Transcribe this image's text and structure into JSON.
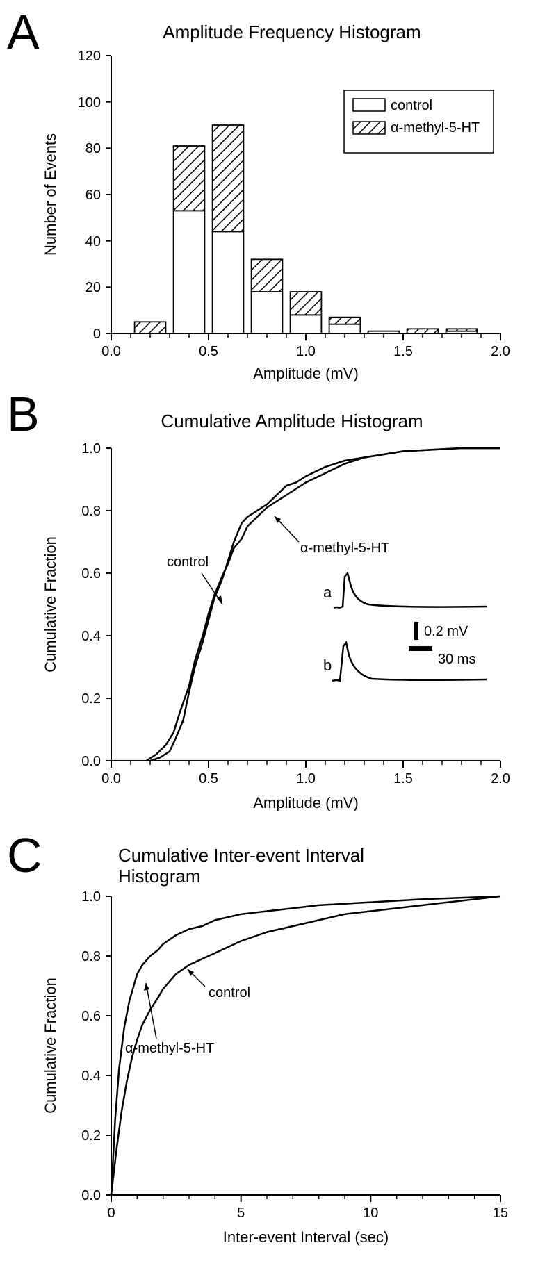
{
  "panelA": {
    "label": "A",
    "title": "Amplitude Frequency Histogram",
    "type": "histogram",
    "xlabel": "Amplitude (mV)",
    "ylabel": "Number of Events",
    "xlim": [
      0.0,
      2.0
    ],
    "ylim": [
      0,
      120
    ],
    "xtick_step": 0.5,
    "ytick_step": 20,
    "xticks": [
      0.0,
      0.5,
      1.0,
      1.5,
      2.0
    ],
    "yticks": [
      0,
      20,
      40,
      60,
      80,
      100,
      120
    ],
    "bin_centers": [
      0.2,
      0.4,
      0.6,
      0.8,
      1.0,
      1.2,
      1.4,
      1.6,
      1.8
    ],
    "control_values": [
      0,
      53,
      44,
      18,
      8,
      4,
      1,
      0,
      1
    ],
    "treat_values": [
      5,
      28,
      46,
      14,
      10,
      3,
      0,
      2,
      1
    ],
    "bar_width": 0.16,
    "control_fill": "#ffffff",
    "treat_fill": "hatched",
    "stroke": "#000000",
    "legend": {
      "items": [
        {
          "label": "control",
          "style": "open"
        },
        {
          "label": "α-methyl-5-HT",
          "style": "hatched"
        }
      ],
      "border": true
    },
    "title_fontsize": 22,
    "label_fontsize": 20,
    "tick_fontsize": 18
  },
  "panelB": {
    "label": "B",
    "title": "Cumulative Amplitude Histogram",
    "type": "cumulative_line",
    "xlabel": "Amplitude (mV)",
    "ylabel": "Cumulative Fraction",
    "xlim": [
      0.0,
      2.0
    ],
    "ylim": [
      0.0,
      1.0
    ],
    "xticks": [
      0.0,
      0.5,
      1.0,
      1.5,
      2.0
    ],
    "yticks": [
      0.0,
      0.2,
      0.4,
      0.6,
      0.8,
      1.0
    ],
    "series": {
      "control": {
        "x": [
          0.2,
          0.25,
          0.3,
          0.33,
          0.37,
          0.4,
          0.43,
          0.47,
          0.5,
          0.53,
          0.57,
          0.6,
          0.63,
          0.67,
          0.7,
          0.75,
          0.8,
          0.85,
          0.9,
          0.95,
          1.0,
          1.1,
          1.2,
          1.3,
          1.5,
          1.8,
          2.0
        ],
        "y": [
          0.0,
          0.01,
          0.03,
          0.07,
          0.13,
          0.22,
          0.3,
          0.38,
          0.45,
          0.52,
          0.58,
          0.64,
          0.7,
          0.76,
          0.78,
          0.8,
          0.82,
          0.85,
          0.88,
          0.89,
          0.91,
          0.94,
          0.96,
          0.97,
          0.99,
          1.0,
          1.0
        ]
      },
      "treat": {
        "x": [
          0.18,
          0.23,
          0.28,
          0.32,
          0.35,
          0.4,
          0.43,
          0.47,
          0.5,
          0.53,
          0.57,
          0.6,
          0.63,
          0.67,
          0.7,
          0.75,
          0.8,
          0.85,
          0.9,
          0.95,
          1.0,
          1.1,
          1.2,
          1.3,
          1.5,
          1.8,
          2.0
        ],
        "y": [
          0.0,
          0.02,
          0.05,
          0.09,
          0.15,
          0.24,
          0.32,
          0.4,
          0.47,
          0.53,
          0.59,
          0.63,
          0.68,
          0.71,
          0.75,
          0.78,
          0.81,
          0.83,
          0.85,
          0.87,
          0.89,
          0.92,
          0.95,
          0.97,
          0.99,
          1.0,
          1.0
        ]
      }
    },
    "annotations": {
      "control_label": "control",
      "treat_label": "α-methyl-5-HT"
    },
    "inset": {
      "scale_mv": "0.2 mV",
      "scale_ms": "30 ms",
      "trace_labels": [
        "a",
        "b"
      ]
    },
    "line_color": "#000000",
    "line_width": 2.5,
    "title_fontsize": 22,
    "label_fontsize": 20,
    "tick_fontsize": 18
  },
  "panelC": {
    "label": "C",
    "title_line1": "Cumulative Inter-event Interval",
    "title_line2": "Histogram",
    "type": "cumulative_line",
    "xlabel": "Inter-event Interval (sec)",
    "ylabel": "Cumulative Fraction",
    "xlim": [
      0,
      15
    ],
    "ylim": [
      0.0,
      1.0
    ],
    "xticks": [
      0,
      5,
      10,
      15
    ],
    "yticks": [
      0.0,
      0.2,
      0.4,
      0.6,
      0.8,
      1.0
    ],
    "series": {
      "control": {
        "x": [
          0,
          0.2,
          0.4,
          0.6,
          0.8,
          1.0,
          1.2,
          1.5,
          1.8,
          2.0,
          2.5,
          3.0,
          3.5,
          4.0,
          4.5,
          5.0,
          6.0,
          7.0,
          8.0,
          9.0,
          10.0,
          12.0,
          15.0
        ],
        "y": [
          0.0,
          0.15,
          0.28,
          0.38,
          0.46,
          0.52,
          0.57,
          0.62,
          0.66,
          0.69,
          0.74,
          0.77,
          0.79,
          0.81,
          0.83,
          0.85,
          0.88,
          0.9,
          0.92,
          0.94,
          0.95,
          0.97,
          1.0
        ]
      },
      "treat": {
        "x": [
          0,
          0.15,
          0.3,
          0.5,
          0.7,
          0.9,
          1.0,
          1.2,
          1.5,
          1.8,
          2.0,
          2.5,
          3.0,
          3.5,
          4.0,
          5.0,
          6.0,
          7.0,
          8.0,
          10.0,
          12.0,
          15.0
        ],
        "y": [
          0.0,
          0.25,
          0.42,
          0.56,
          0.65,
          0.71,
          0.74,
          0.77,
          0.8,
          0.82,
          0.84,
          0.87,
          0.89,
          0.9,
          0.92,
          0.94,
          0.95,
          0.96,
          0.97,
          0.98,
          0.99,
          1.0
        ]
      }
    },
    "annotations": {
      "control_label": "control",
      "treat_label": "α-methyl-5-HT"
    },
    "line_color": "#000000",
    "line_width": 2.5,
    "title_fontsize": 22,
    "label_fontsize": 20,
    "tick_fontsize": 18
  }
}
